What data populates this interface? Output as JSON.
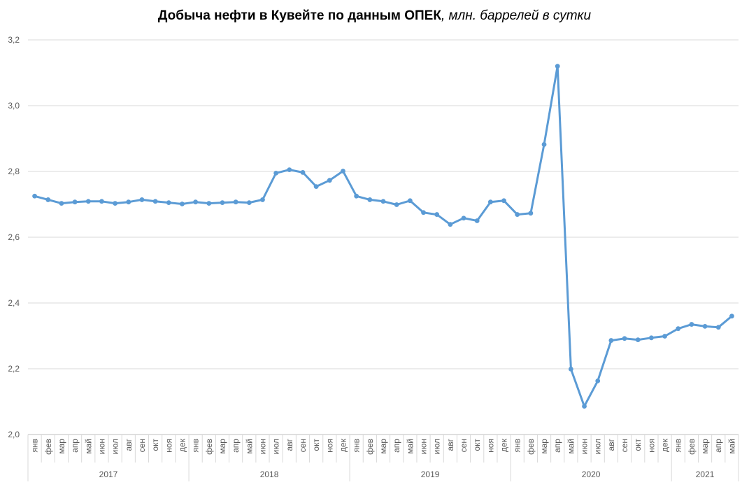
{
  "chart_data": {
    "type": "line",
    "title": "Добыча нефти в Кувейте по данным ОПЕК",
    "title_unit": ", млн. баррелей в сутки",
    "xlabel": "",
    "ylabel": "",
    "ylim": [
      2.0,
      3.2
    ],
    "yticks": [
      "2,0",
      "2,2",
      "2,4",
      "2,6",
      "2,8",
      "3,0",
      "3,2"
    ],
    "grid": true,
    "legend": "none",
    "line_color": "#5B9BD5",
    "years": [
      {
        "label": "2017",
        "months": 12
      },
      {
        "label": "2018",
        "months": 12
      },
      {
        "label": "2019",
        "months": 12
      },
      {
        "label": "2020",
        "months": 12
      },
      {
        "label": "2021",
        "months": 5
      }
    ],
    "categories": [
      "янв",
      "фев",
      "мар",
      "апр",
      "май",
      "июн",
      "июл",
      "авг",
      "сен",
      "окт",
      "ноя",
      "дек",
      "янв",
      "фев",
      "мар",
      "апр",
      "май",
      "июн",
      "июл",
      "авг",
      "сен",
      "окт",
      "ноя",
      "дек",
      "янв",
      "фев",
      "мар",
      "апр",
      "май",
      "июн",
      "июл",
      "авг",
      "сен",
      "окт",
      "ноя",
      "дек",
      "янв",
      "фев",
      "мар",
      "апр",
      "май",
      "июн",
      "июл",
      "авг",
      "сен",
      "окт",
      "ноя",
      "дек",
      "янв",
      "фев",
      "мар",
      "апр",
      "май"
    ],
    "series": [
      {
        "values": [
          2.725,
          2.714,
          2.703,
          2.707,
          2.709,
          2.709,
          2.703,
          2.707,
          2.714,
          2.709,
          2.705,
          2.701,
          2.707,
          2.703,
          2.705,
          2.707,
          2.705,
          2.714,
          2.795,
          2.805,
          2.797,
          2.754,
          2.773,
          2.801,
          2.725,
          2.714,
          2.709,
          2.699,
          2.711,
          2.675,
          2.669,
          2.639,
          2.658,
          2.65,
          2.707,
          2.711,
          2.669,
          2.673,
          2.882,
          3.12,
          2.199,
          2.086,
          2.163,
          2.286,
          2.292,
          2.288,
          2.294,
          2.299,
          2.322,
          2.335,
          2.329,
          2.326,
          2.36
        ]
      }
    ]
  }
}
